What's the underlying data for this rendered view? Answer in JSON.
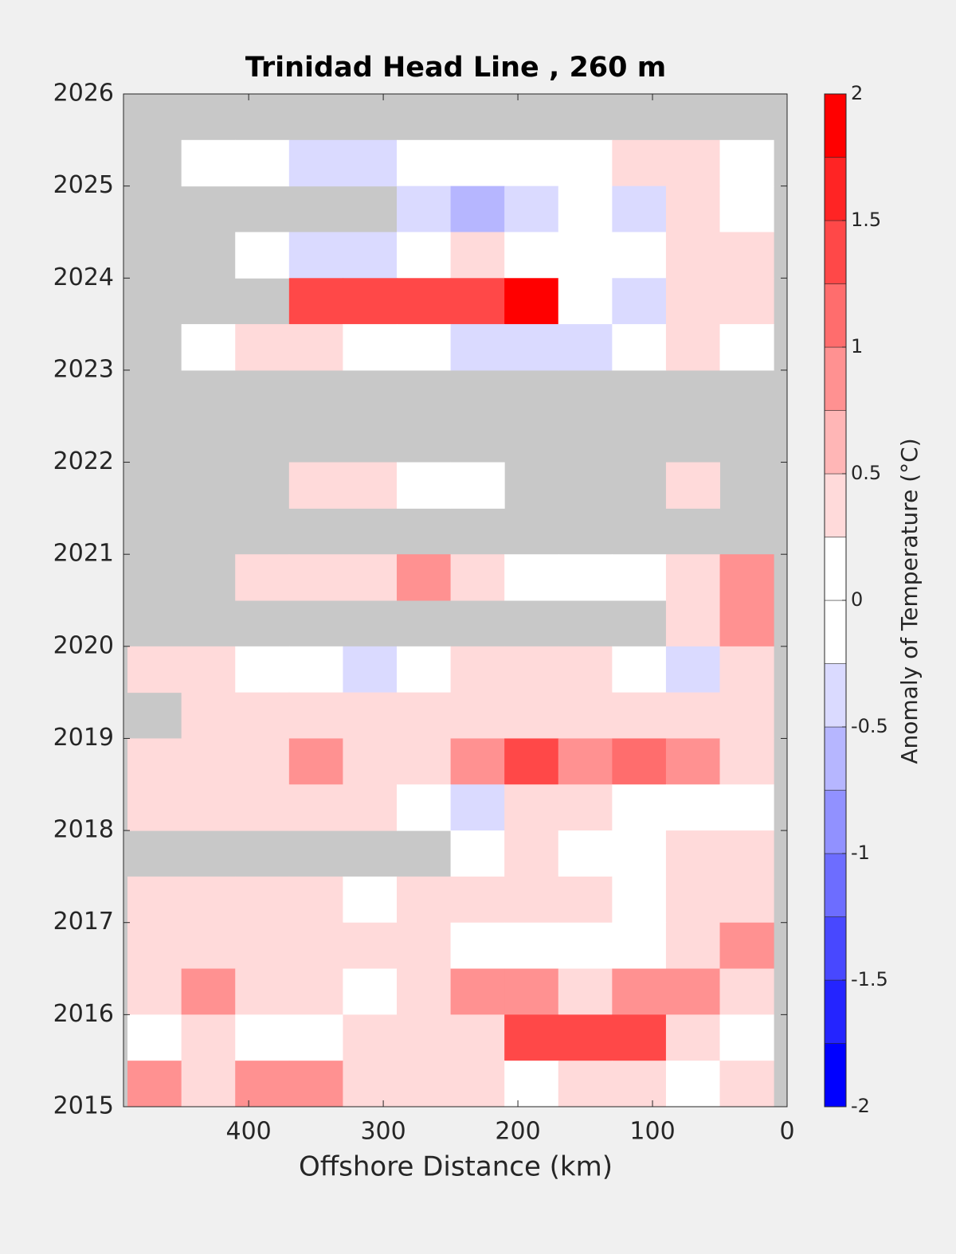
{
  "chart_data": {
    "type": "contour",
    "title": "Trinidad Head Line , 260 m",
    "x_label": "Offshore Distance (km)",
    "colorbar_label": "Anomaly of Temperature (°C)",
    "xlim": [
      493,
      0
    ],
    "xticks": [
      400,
      300,
      200,
      100,
      0
    ],
    "ylim": [
      2015,
      2026
    ],
    "yticks": [
      2015,
      2016,
      2017,
      2018,
      2019,
      2020,
      2021,
      2022,
      2023,
      2024,
      2025,
      2026
    ],
    "missing_color": "#c8c8c8",
    "x": [
      470,
      430,
      390,
      350,
      310,
      270,
      230,
      190,
      150,
      110,
      70,
      30
    ],
    "y": [
      2025.75,
      2025.25,
      2024.75,
      2024.25,
      2023.75,
      2023.25,
      2022.75,
      2022.25,
      2021.75,
      2021.25,
      2020.75,
      2020.25,
      2019.75,
      2019.25,
      2018.75,
      2018.25,
      2017.75,
      2017.25,
      2016.75,
      2016.25,
      2015.75,
      2015.25
    ],
    "z": [
      [
        null,
        null,
        null,
        null,
        null,
        null,
        null,
        null,
        null,
        null,
        null,
        null
      ],
      [
        null,
        0,
        0,
        -0.3,
        -0.3,
        0,
        0,
        0,
        0,
        0.3,
        0.3,
        0
      ],
      [
        null,
        null,
        null,
        null,
        null,
        -0.3,
        -0.5,
        -0.3,
        0,
        -0.3,
        0.3,
        0
      ],
      [
        null,
        null,
        0,
        -0.3,
        -0.3,
        0,
        0.3,
        0,
        0,
        0,
        0.3,
        0.3
      ],
      [
        null,
        null,
        null,
        1.5,
        1.3,
        1.5,
        1.3,
        1.8,
        0,
        -0.3,
        0.5,
        0.3
      ],
      [
        null,
        0,
        0.3,
        0.3,
        0,
        0,
        -0.3,
        -0.3,
        -0.3,
        0,
        0.3,
        0
      ],
      [
        null,
        null,
        null,
        null,
        null,
        null,
        null,
        null,
        null,
        null,
        null,
        null
      ],
      [
        null,
        null,
        null,
        null,
        null,
        null,
        null,
        null,
        null,
        null,
        null,
        null
      ],
      [
        null,
        null,
        null,
        0.5,
        0.3,
        0,
        0,
        null,
        null,
        null,
        0.5,
        null
      ],
      [
        null,
        null,
        null,
        null,
        null,
        null,
        null,
        null,
        null,
        null,
        null,
        null
      ],
      [
        null,
        null,
        0.5,
        0.5,
        0.5,
        0.8,
        0.5,
        0,
        0,
        0,
        0.3,
        0.8
      ],
      [
        null,
        null,
        null,
        null,
        null,
        null,
        null,
        null,
        null,
        null,
        0.3,
        1
      ],
      [
        0.3,
        0.3,
        0,
        0,
        -0.3,
        0,
        0.3,
        0.5,
        0.3,
        0,
        -0.3,
        0.3
      ],
      [
        null,
        0.3,
        0.3,
        0.5,
        0.3,
        0.3,
        0.5,
        0.5,
        0.5,
        0.3,
        0.3,
        0.3
      ],
      [
        0.3,
        0.3,
        0.5,
        0.8,
        0.5,
        0.5,
        0.8,
        1.3,
        0.8,
        1.1,
        0.8,
        0.5
      ],
      [
        0.5,
        0.3,
        0.3,
        0.5,
        0.3,
        0,
        -0.3,
        0.5,
        0.3,
        0,
        0,
        0
      ],
      [
        null,
        null,
        null,
        null,
        null,
        null,
        0,
        0.3,
        0,
        0,
        0.3,
        0.5
      ],
      [
        0.5,
        0.5,
        0.3,
        0.3,
        0,
        0.3,
        0.3,
        0.3,
        0.3,
        0,
        0.3,
        0.3
      ],
      [
        0.3,
        0.5,
        0.3,
        0.5,
        0.3,
        0.3,
        0,
        0,
        0,
        0,
        0.3,
        0.8
      ],
      [
        0.3,
        0.8,
        0.5,
        0.3,
        0,
        0.5,
        0.8,
        0.8,
        0.5,
        1,
        0.8,
        0.3
      ],
      [
        0,
        0.3,
        0,
        0,
        0.3,
        0.3,
        0.5,
        1.3,
        1.3,
        1.3,
        0.3,
        0
      ],
      [
        0.8,
        0.5,
        0.8,
        1,
        0.5,
        0.3,
        0.3,
        0,
        0.3,
        0.3,
        0,
        0.5
      ]
    ],
    "levels": [
      -2,
      -1.75,
      -1.5,
      -1.25,
      -1,
      -0.75,
      -0.5,
      -0.25,
      0,
      0.25,
      0.5,
      0.75,
      1,
      1.25,
      1.5,
      1.75,
      2
    ],
    "colors": [
      "#0000ff",
      "#2424ff",
      "#4848ff",
      "#6d6dff",
      "#9191ff",
      "#b6b6ff",
      "#dadaff",
      "#ffffff",
      "#ffffff",
      "#ffdada",
      "#ffb6b6",
      "#ff9191",
      "#ff6d6d",
      "#ff4848",
      "#ff2424",
      "#ff0000"
    ],
    "colorbar_ticks": [
      -2,
      -1.5,
      -1,
      -0.5,
      0,
      0.5,
      1,
      1.5,
      2
    ]
  }
}
